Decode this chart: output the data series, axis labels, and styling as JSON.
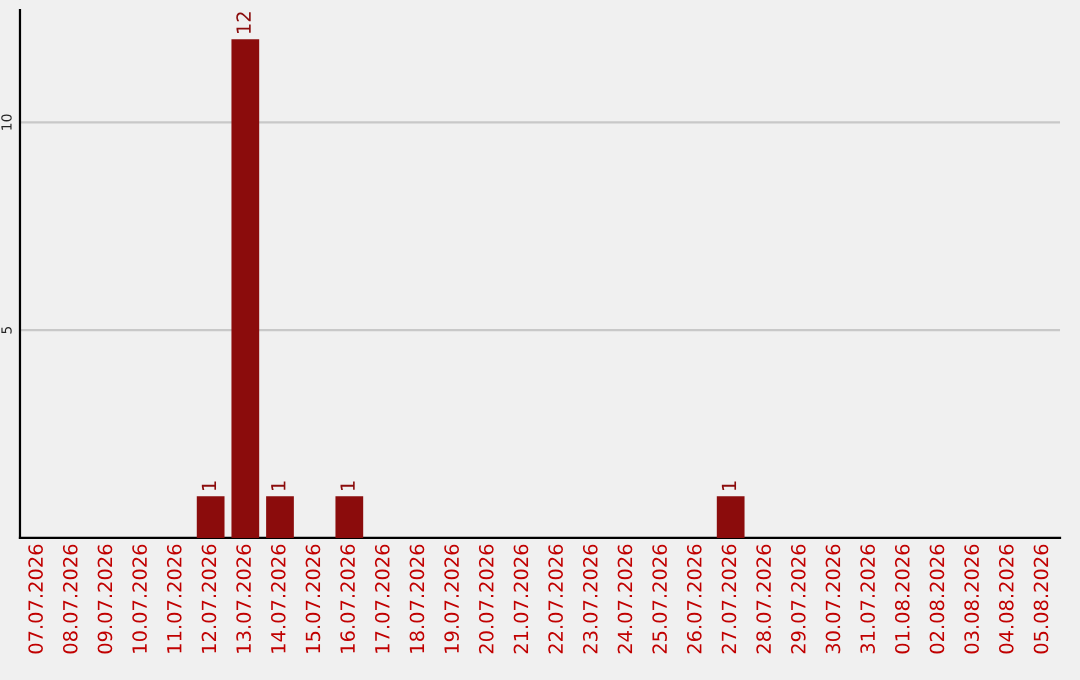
{
  "chart_data": {
    "type": "bar",
    "categories": [
      "07.07.2026",
      "08.07.2026",
      "09.07.2026",
      "10.07.2026",
      "11.07.2026",
      "12.07.2026",
      "13.07.2026",
      "14.07.2026",
      "15.07.2026",
      "16.07.2026",
      "17.07.2026",
      "18.07.2026",
      "19.07.2026",
      "20.07.2026",
      "21.07.2026",
      "22.07.2026",
      "23.07.2026",
      "24.07.2026",
      "25.07.2026",
      "26.07.2026",
      "27.07.2026",
      "28.07.2026",
      "29.07.2026",
      "30.07.2026",
      "31.07.2026",
      "01.08.2026",
      "02.08.2026",
      "03.08.2026",
      "04.08.2026",
      "05.08.2026"
    ],
    "values": [
      0,
      0,
      0,
      0,
      0,
      1,
      12,
      1,
      0,
      1,
      0,
      0,
      0,
      0,
      0,
      0,
      0,
      0,
      0,
      0,
      1,
      0,
      0,
      0,
      0,
      0,
      0,
      0,
      0,
      0
    ],
    "value_labels": [
      null,
      null,
      null,
      null,
      null,
      "1",
      "12",
      "1",
      null,
      "1",
      null,
      null,
      null,
      null,
      null,
      null,
      null,
      null,
      null,
      null,
      "1",
      null,
      null,
      null,
      null,
      null,
      null,
      null,
      null,
      null
    ],
    "color": "#8b0c0c",
    "ylim": [
      0,
      12.7
    ],
    "yticks": [
      5,
      10
    ],
    "grid": "y"
  }
}
